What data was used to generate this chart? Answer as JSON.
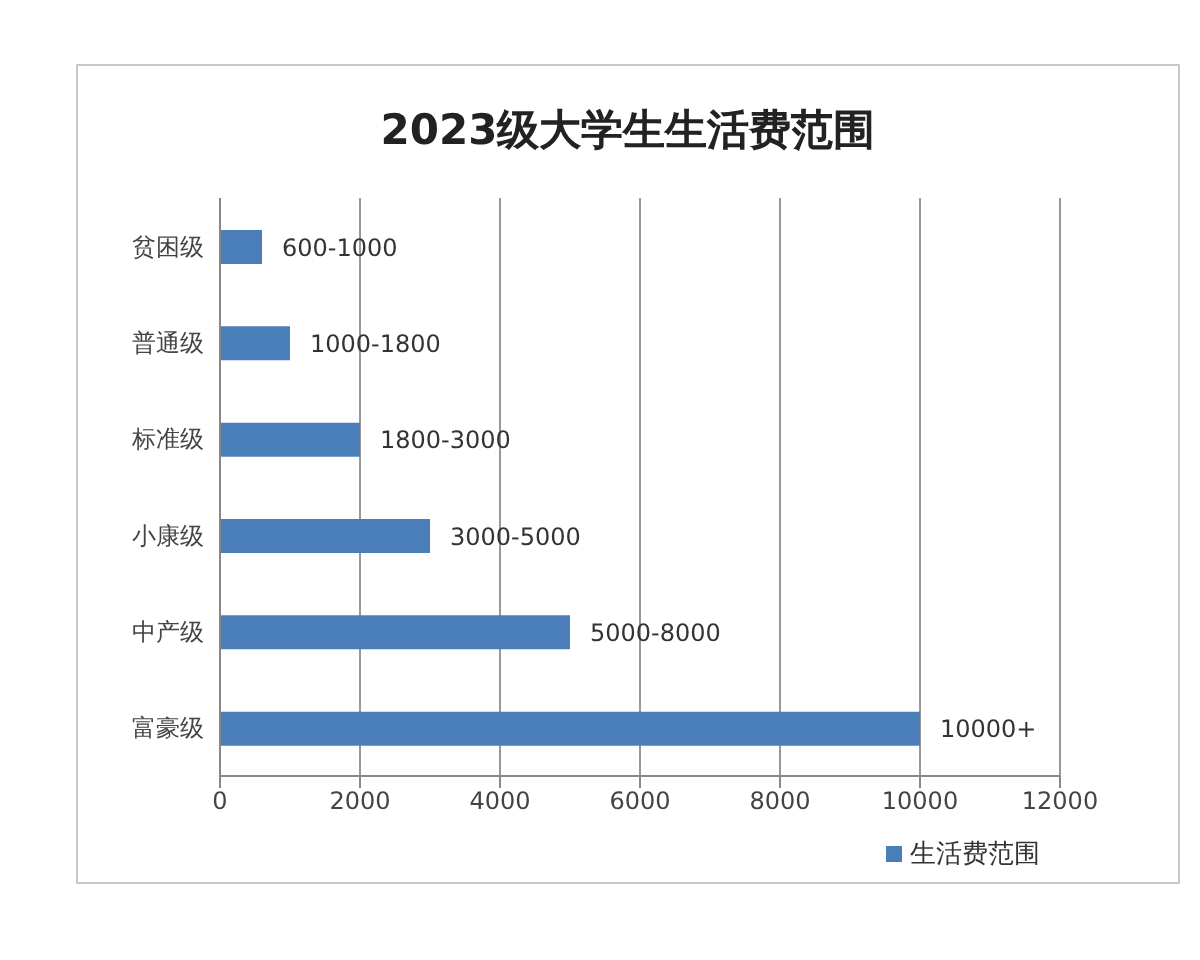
{
  "chart_data": {
    "type": "bar",
    "orientation": "horizontal",
    "title": "2023级大学生生活费范围",
    "categories": [
      "贫困级",
      "普通级",
      "标准级",
      "小康级",
      "中产级",
      "富豪级"
    ],
    "series": [
      {
        "name": "生活费范围",
        "color": "#4a7ebb",
        "values": [
          600,
          1000,
          2000,
          3000,
          5000,
          10000
        ],
        "value_labels": [
          "600-1000",
          "1000-1800",
          "1800-3000",
          "3000-5000",
          "5000-8000",
          "10000+"
        ]
      }
    ],
    "xlim": [
      0,
      12000
    ],
    "xticks": [
      0,
      2000,
      4000,
      6000,
      8000,
      10000,
      12000
    ],
    "grid": "x",
    "legend": "bottom right"
  }
}
